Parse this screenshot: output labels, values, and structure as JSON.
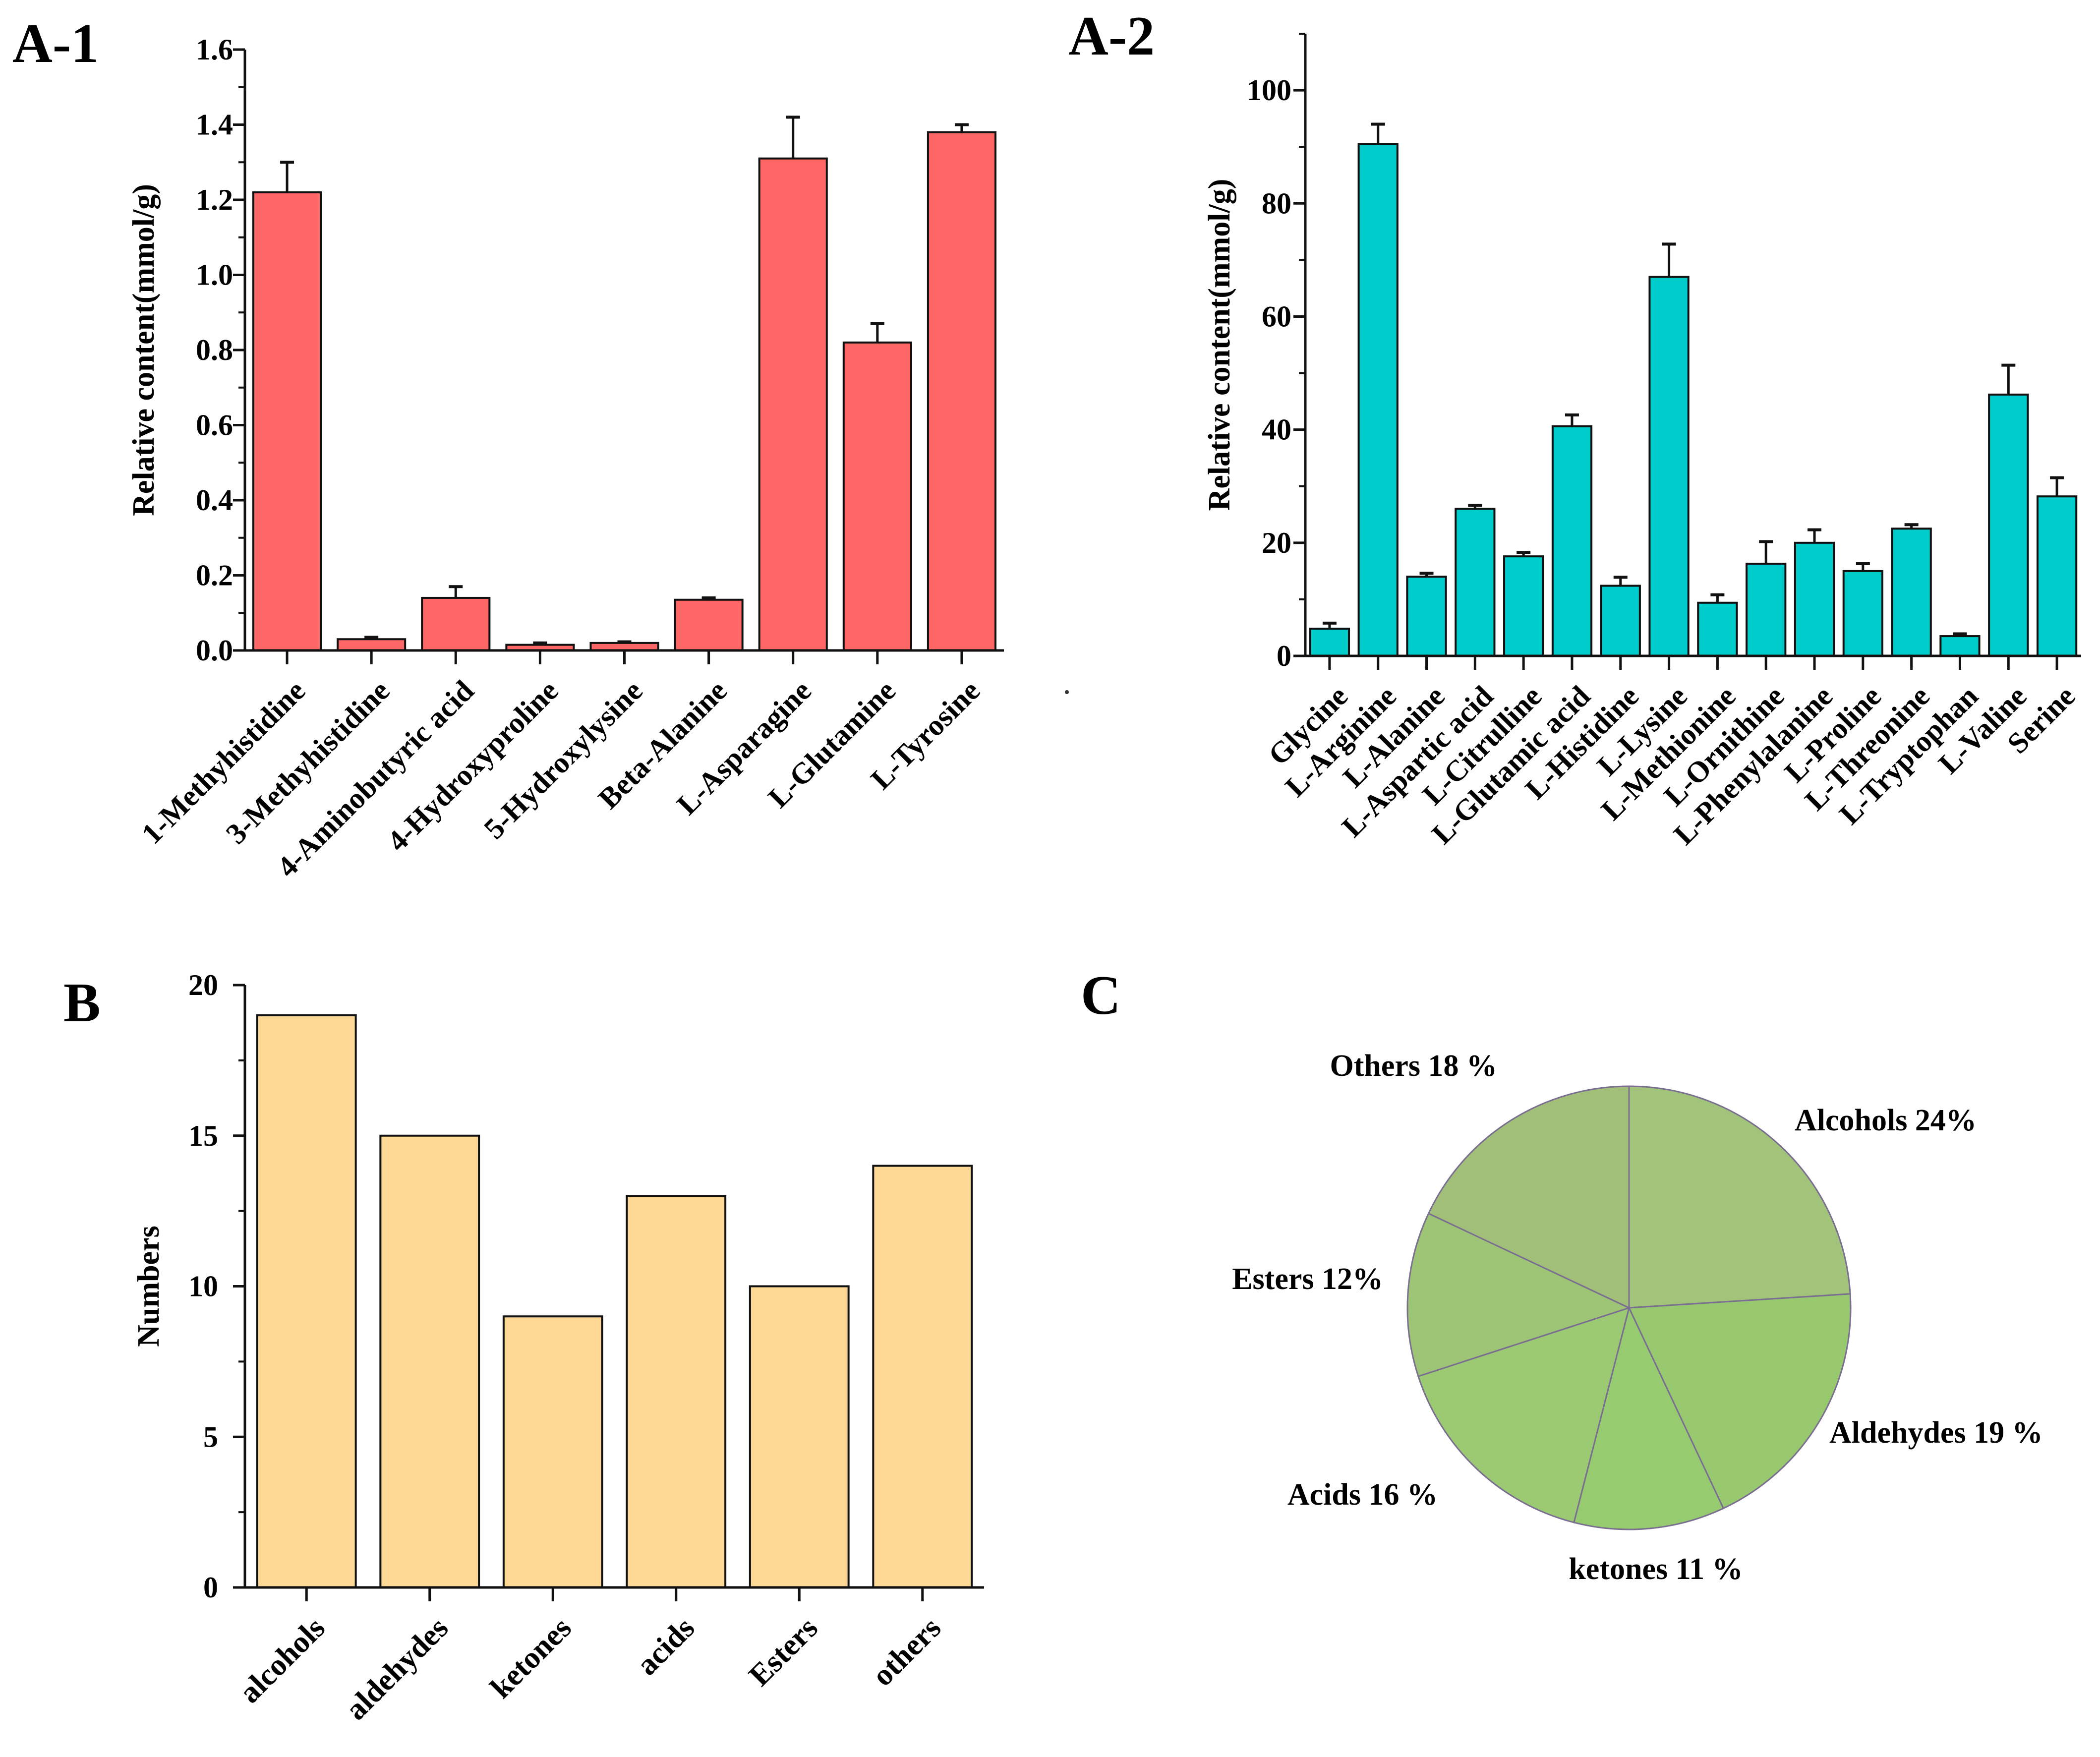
{
  "chart_data": [
    {
      "panel": "A-1",
      "type": "bar",
      "ylabel": "Relative content(mmol/g)",
      "xlabel": "",
      "ylim": [
        0,
        1.6
      ],
      "yticks": [
        "0.0",
        "0.2",
        "0.4",
        "0.6",
        "0.8",
        "1.0",
        "1.2",
        "1.4",
        "1.6"
      ],
      "categories": [
        "1-Methyhistidine",
        "3-Methyhistidine",
        "4-Aminobutyric acid",
        "4-Hydroxyproline",
        "5-Hydroxylysine",
        "Beta-Alanine",
        "L-Asparagine",
        "L-Glutamine",
        "L-Tyrosine"
      ],
      "values": [
        1.22,
        0.03,
        0.14,
        0.015,
        0.02,
        0.135,
        1.31,
        0.82,
        1.38
      ],
      "errors": [
        0.08,
        0.005,
        0.03,
        0.005,
        0.003,
        0.005,
        0.11,
        0.05,
        0.02
      ],
      "color": "#ff6666"
    },
    {
      "panel": "A-2",
      "type": "bar",
      "ylabel": "Relative content(mmol/g)",
      "xlabel": "",
      "ylim": [
        0,
        110
      ],
      "yticks": [
        "0",
        "20",
        "40",
        "60",
        "80",
        "100"
      ],
      "categories": [
        "Glycine",
        "L-Arginine",
        "L-Alanine",
        "L-Aspartic acid",
        "L-Citrulline",
        "L-Glutamic acid",
        "L-Histidine",
        "L-Lysine",
        "L-Methionine",
        "L-Ornithine",
        "L-Phenylalanine",
        "L-Proline",
        "L-Threonine",
        "L-Tryptophan",
        "L-Valine",
        "Serine"
      ],
      "values": [
        4.8,
        90.5,
        14,
        26,
        17.6,
        40.6,
        12.4,
        67,
        9.4,
        16.3,
        20,
        15,
        22.5,
        3.5,
        46.2,
        28.2
      ],
      "errors": [
        1.0,
        3.5,
        0.6,
        0.6,
        0.7,
        2.0,
        1.5,
        5.8,
        1.4,
        3.9,
        2.3,
        1.3,
        0.7,
        0.4,
        5.2,
        3.3
      ],
      "color": "#00cccc"
    },
    {
      "panel": "B",
      "type": "bar",
      "ylabel": "Numbers",
      "xlabel": "",
      "ylim": [
        0,
        20
      ],
      "yticks": [
        "0",
        "5",
        "10",
        "15",
        "20"
      ],
      "categories": [
        "alcohols",
        "aldehydes",
        "ketones",
        "acids",
        "Esters",
        "others"
      ],
      "values": [
        19,
        15,
        9,
        13,
        10,
        14
      ],
      "color": "#fdd995"
    },
    {
      "panel": "C",
      "type": "pie",
      "labels": [
        "Alcohols 24%",
        "Aldehydes 19 %",
        "ketones 11 %",
        "Acids 16 %",
        "Esters 12%",
        "Others 18 %"
      ],
      "values": [
        24,
        19,
        11,
        16,
        12,
        18
      ],
      "colors": [
        "#a1c37a",
        "#98c96f",
        "#97cb6f",
        "#9bca72",
        "#9dc575",
        "#a1bf79"
      ]
    }
  ]
}
